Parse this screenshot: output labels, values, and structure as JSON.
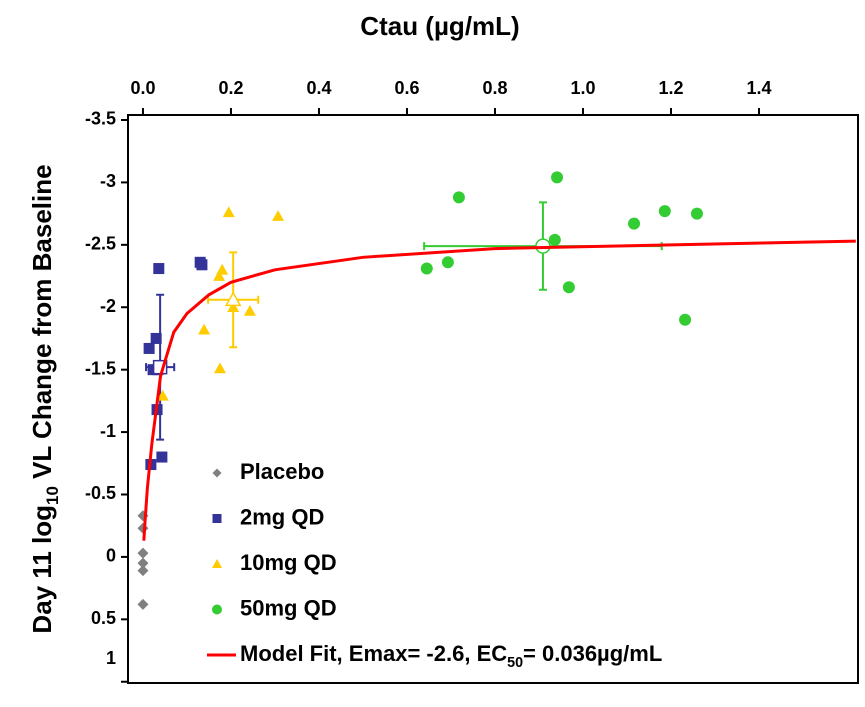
{
  "chart_data": {
    "type": "scatter",
    "title": "Ctau (µg/mL)",
    "y_label": [
      "Day 11 log",
      "10",
      " VL Change from Baseline"
    ],
    "x_axis_position": "top",
    "xlim": [
      -0.034,
      1.625
    ],
    "xticks": [
      {
        "value": 0,
        "label": "0.0"
      },
      0.2,
      0.4,
      0.6,
      0.8,
      {
        "value": 1,
        "label": "1.0"
      },
      1.2,
      1.4
    ],
    "ylim": [
      1.01,
      -3.54
    ],
    "yticks": [
      -3.5,
      -3,
      -2.5,
      -2,
      -1.5,
      -1,
      -0.5,
      0,
      0.5,
      1
    ],
    "legend": "lower-left",
    "series": [
      {
        "name": "Placebo",
        "color": "#808080",
        "marker": "diamond",
        "x": [
          0,
          0,
          0,
          0,
          0,
          0
        ],
        "values": [
          -0.33,
          -0.23,
          -0.03,
          0.05,
          0.11,
          0.38
        ]
      },
      {
        "name": "2mg QD",
        "color": "#333399",
        "marker": "square",
        "x": [
          0.014,
          0.03,
          0.036,
          0.023,
          0.034,
          0.032,
          0.018,
          0.043,
          0.13,
          0.134
        ],
        "values": [
          -1.67,
          -1.75,
          -2.31,
          -1.5,
          -1.5,
          -1.18,
          -0.74,
          -0.8,
          -2.36,
          -2.34
        ],
        "mean": {
          "x": 0.039,
          "y": -1.52,
          "x_err": 0.032,
          "y_err": 0.58
        }
      },
      {
        "name": "10mg QD",
        "color": "#ffcc00",
        "marker": "triangle",
        "x": [
          0.195,
          0.307,
          0.18,
          0.173,
          0.139,
          0.205,
          0.243,
          0.175,
          0.045
        ],
        "values": [
          -2.76,
          -2.73,
          -2.3,
          -2.25,
          -1.82,
          -2.0,
          -1.97,
          -1.51,
          -1.29
        ],
        "mean": {
          "x": 0.205,
          "y": -2.06,
          "x_err": 0.057,
          "y_err": 0.38
        }
      },
      {
        "name": "50mg QD",
        "color": "#33cc33",
        "marker": "circle",
        "x": [
          0.941,
          1.186,
          1.259,
          1.116,
          0.718,
          0.936,
          0.968,
          1.232,
          0.645,
          0.693
        ],
        "values": [
          -3.04,
          -2.77,
          -2.75,
          -2.67,
          -2.88,
          -2.54,
          -2.16,
          -1.9,
          -2.31,
          -2.36
        ],
        "mean": {
          "x": 0.909,
          "y": -2.49,
          "x_err": 0.27,
          "y_err": 0.35
        }
      },
      {
        "name": [
          "Model Fit, Emax= -2.6, EC",
          "50",
          "= 0.036µg/mL"
        ],
        "color": "#ff0000",
        "marker": "line",
        "x": [
          0.002,
          0.005,
          0.01,
          0.02,
          0.04,
          0.07,
          0.1,
          0.15,
          0.2,
          0.3,
          0.5,
          0.8,
          1.2,
          1.62
        ],
        "values": [
          -0.13,
          -0.3,
          -0.55,
          -0.9,
          -1.45,
          -1.8,
          -1.95,
          -2.1,
          -2.2,
          -2.3,
          -2.4,
          -2.47,
          -2.5,
          -2.53
        ]
      }
    ]
  }
}
